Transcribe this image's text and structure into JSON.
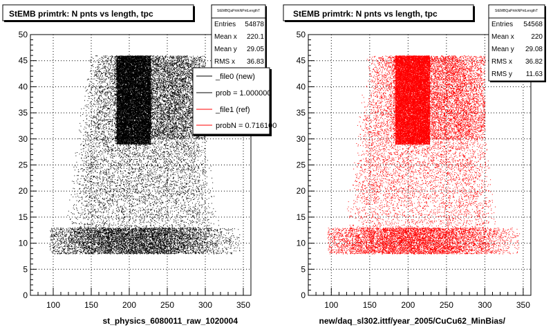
{
  "chart_data": [
    {
      "type": "scatter",
      "title": "StEMB primtrk: N pnts vs length, tpc",
      "xlabel": "st_physics_6080011_raw_1020004",
      "ylabel": "",
      "xlim": [
        70,
        360
      ],
      "ylim": [
        0,
        50
      ],
      "xticks": [
        "100",
        "150",
        "200",
        "250",
        "300",
        "350"
      ],
      "yticks": [
        "0",
        "5",
        "10",
        "15",
        "20",
        "25",
        "30",
        "35",
        "40",
        "45",
        "50"
      ],
      "grid": true,
      "marker_color": "#000000",
      "density": {
        "x_range": [
          95,
          345
        ],
        "y_range": [
          8,
          46
        ],
        "dense_core": {
          "x": [
            183,
            228
          ],
          "y": [
            29,
            46
          ]
        },
        "band": {
          "x": [
            115,
            300
          ],
          "y": [
            8,
            13
          ]
        }
      },
      "stats": {
        "name": "StEMBQaPrtrkNPntLengthT",
        "rows": [
          {
            "label": "Entries",
            "value": "54878"
          },
          {
            "label": "Mean x",
            "value": "220.1"
          },
          {
            "label": "Mean y",
            "value": "29.05"
          },
          {
            "label": "RMS x",
            "value": "36.83"
          }
        ]
      },
      "legend": {
        "position": "top-right",
        "entries": [
          {
            "label": "_file0 (new)",
            "color": "#000000"
          },
          {
            "label": "prob = 1.000000",
            "color": "#000000"
          },
          {
            "label": "_file1 (ref)",
            "color": "#ff0000"
          },
          {
            "label": "probN = 0.716100",
            "color": "#ff0000"
          }
        ]
      }
    },
    {
      "type": "scatter",
      "title": "StEMB primtrk: N pnts vs length, tpc",
      "xlabel": "new/daq_sl302.ittf/year_2005/CuCu62_MinBias/",
      "ylabel": "",
      "xlim": [
        70,
        360
      ],
      "ylim": [
        0,
        50
      ],
      "xticks": [
        "100",
        "150",
        "200",
        "250",
        "300",
        "350"
      ],
      "yticks": [
        "0",
        "5",
        "10",
        "15",
        "20",
        "25",
        "30",
        "35",
        "40",
        "45",
        "50"
      ],
      "grid": true,
      "marker_color": "#ff0000",
      "density": {
        "x_range": [
          95,
          345
        ],
        "y_range": [
          8,
          46
        ],
        "dense_core": {
          "x": [
            183,
            228
          ],
          "y": [
            29,
            46
          ]
        },
        "band": {
          "x": [
            115,
            300
          ],
          "y": [
            8,
            13
          ]
        }
      },
      "stats": {
        "name": "StEMBQaPrtrkNPntLengthT",
        "rows": [
          {
            "label": "Entries",
            "value": "54568"
          },
          {
            "label": "Mean x",
            "value": "220"
          },
          {
            "label": "Mean y",
            "value": "29.08"
          },
          {
            "label": "RMS x",
            "value": "36.82"
          },
          {
            "label": "RMS y",
            "value": "11.63"
          }
        ]
      }
    }
  ]
}
